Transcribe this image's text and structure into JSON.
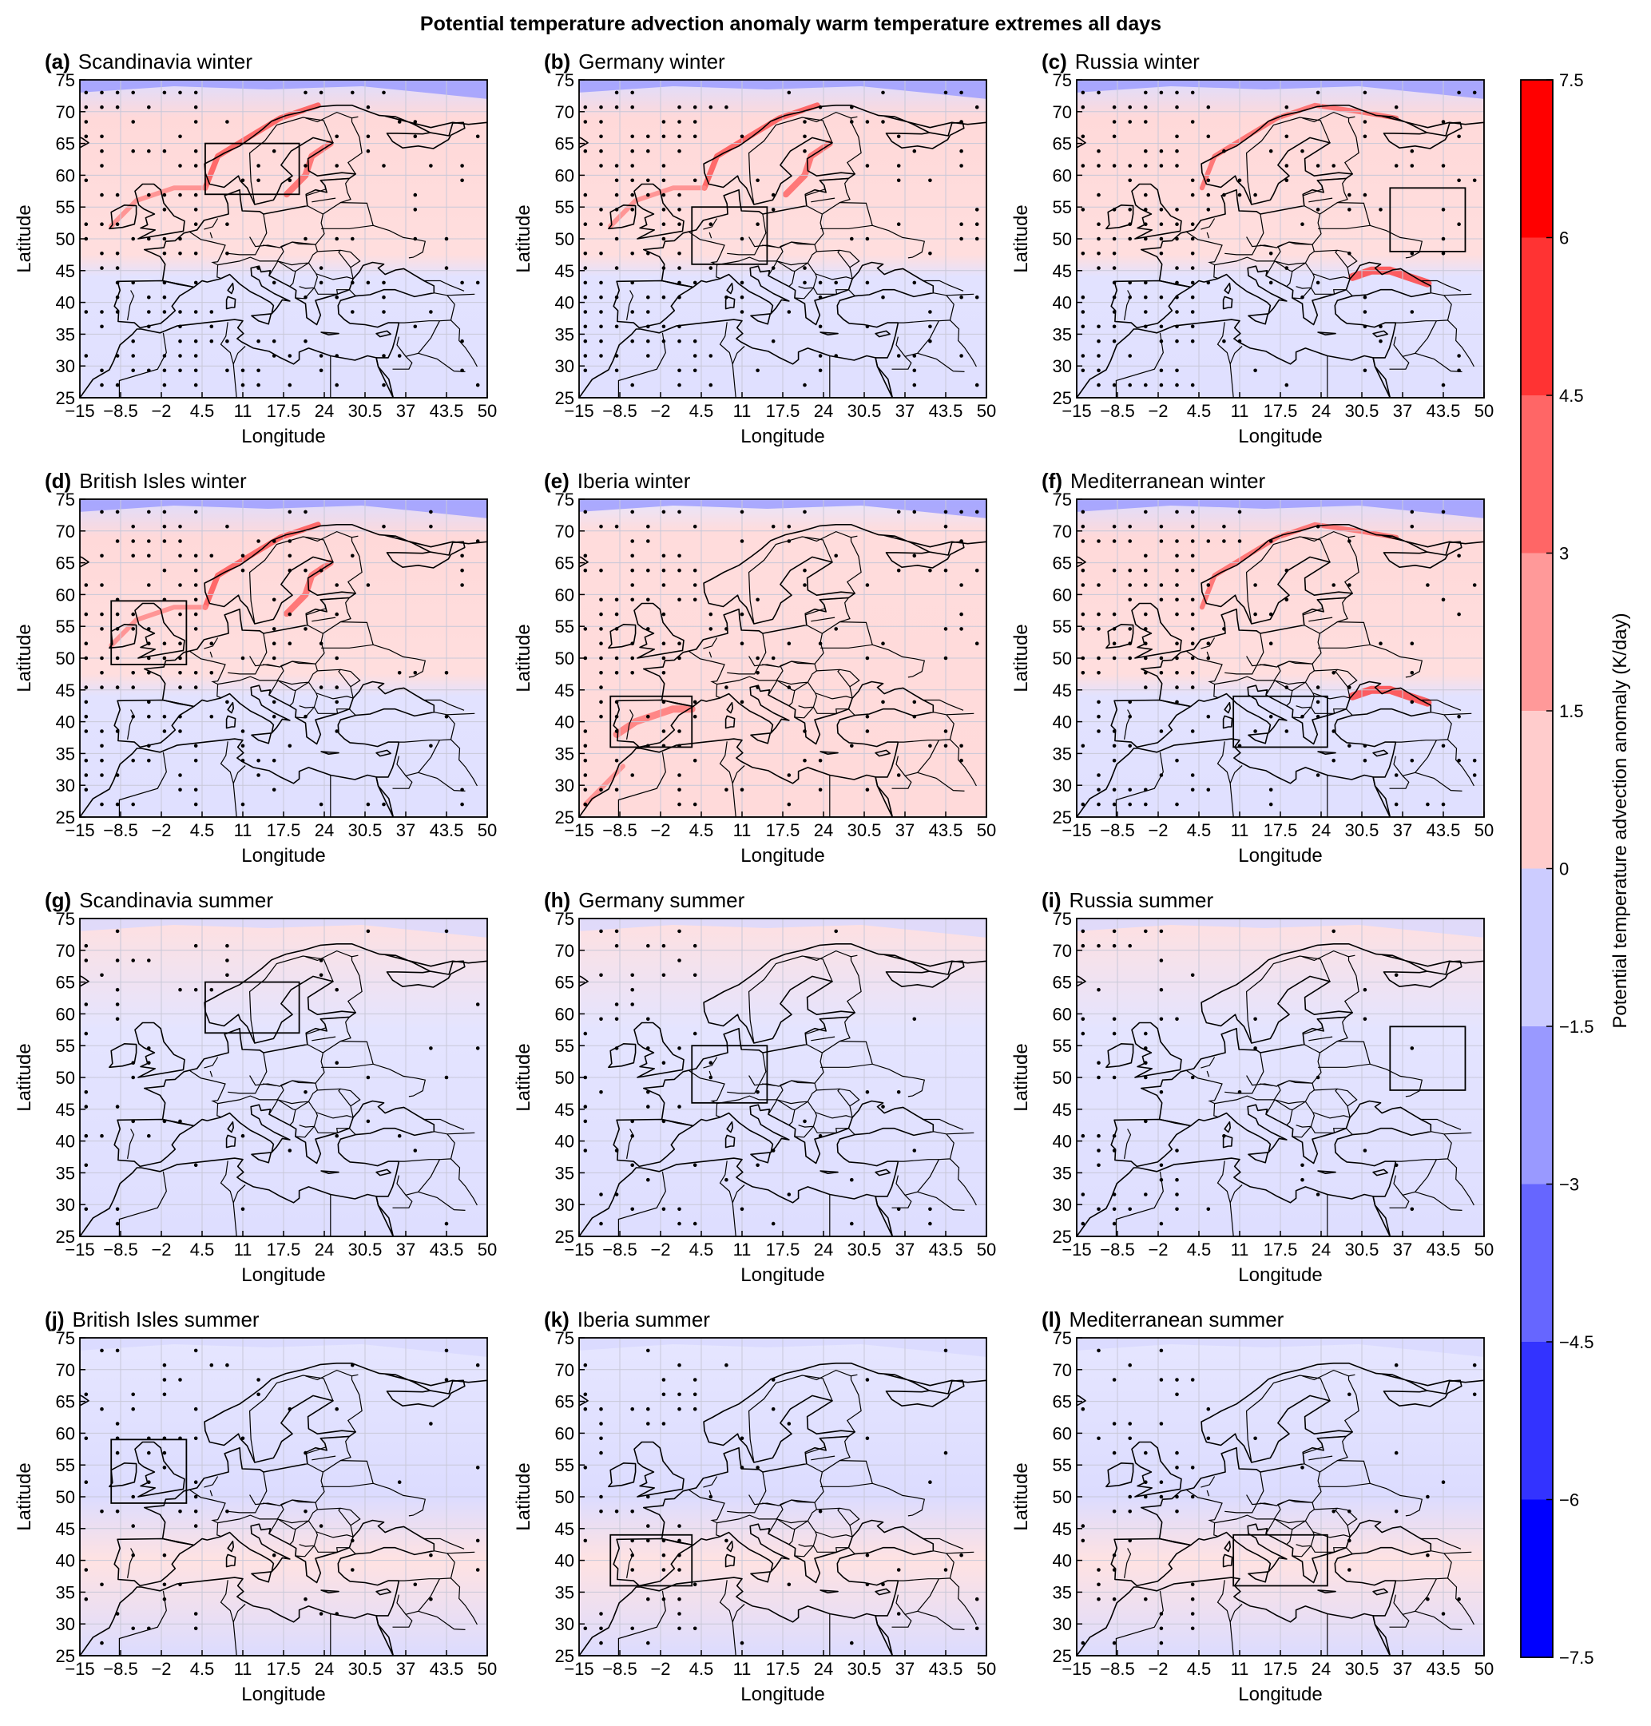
{
  "chart_data": {
    "type": "heatmap",
    "title": "Potential temperature advection anomaly warm temperature extremes all days",
    "xlabel": "Longitude",
    "ylabel": "Latitude",
    "xlim": [
      -15,
      50
    ],
    "ylim": [
      25,
      75
    ],
    "x_ticks": [
      "−15",
      "−8.5",
      "−2",
      "4.5",
      "11",
      "17.5",
      "24",
      "30.5",
      "37",
      "43.5",
      "50"
    ],
    "y_ticks": [
      "25",
      "30",
      "35",
      "40",
      "45",
      "50",
      "55",
      "60",
      "65",
      "70",
      "75"
    ],
    "colorbar": {
      "label": "Potential temperature advection anomaly (K/day)",
      "levels": [
        -7.5,
        -6,
        -4.5,
        -3,
        -1.5,
        0,
        1.5,
        3,
        4.5,
        6,
        7.5
      ],
      "tick_labels": [
        "−7.5",
        "−6",
        "−4.5",
        "−3",
        "−1.5",
        "0",
        "1.5",
        "3",
        "4.5",
        "6",
        "7.5"
      ],
      "colors": [
        "#0000ff",
        "#3333ff",
        "#6666ff",
        "#9999ff",
        "#ccccff",
        "#ffcccc",
        "#ff9999",
        "#ff6666",
        "#ff3333",
        "#ff0000"
      ]
    },
    "panels": [
      {
        "letter": "(a)",
        "name": "Scandinavia winter",
        "box": {
          "lon": [
            5,
            20
          ],
          "lat": [
            57,
            65
          ]
        },
        "field": "warm-coastal-north"
      },
      {
        "letter": "(b)",
        "name": "Germany winter",
        "box": {
          "lon": [
            3,
            15
          ],
          "lat": [
            46,
            55
          ]
        },
        "field": "warm-coastal-north"
      },
      {
        "letter": "(c)",
        "name": "Russia winter",
        "box": {
          "lon": [
            35,
            47
          ],
          "lat": [
            48,
            58
          ]
        },
        "field": "warm-black-sea"
      },
      {
        "letter": "(d)",
        "name": "British Isles winter",
        "box": {
          "lon": [
            -10,
            2
          ],
          "lat": [
            49,
            59
          ]
        },
        "field": "warm-coastal-north"
      },
      {
        "letter": "(e)",
        "name": "Iberia winter",
        "box": {
          "lon": [
            -10,
            3
          ],
          "lat": [
            36,
            44
          ]
        },
        "field": "warm-mediterranean"
      },
      {
        "letter": "(f)",
        "name": "Mediterranean winter",
        "box": {
          "lon": [
            10,
            25
          ],
          "lat": [
            36,
            44
          ]
        },
        "field": "warm-black-sea"
      },
      {
        "letter": "(g)",
        "name": "Scandinavia summer",
        "box": {
          "lon": [
            5,
            20
          ],
          "lat": [
            57,
            65
          ]
        },
        "field": "weak"
      },
      {
        "letter": "(h)",
        "name": "Germany summer",
        "box": {
          "lon": [
            3,
            15
          ],
          "lat": [
            46,
            55
          ]
        },
        "field": "weak"
      },
      {
        "letter": "(i)",
        "name": "Russia summer",
        "box": {
          "lon": [
            35,
            47
          ],
          "lat": [
            48,
            58
          ]
        },
        "field": "weak"
      },
      {
        "letter": "(j)",
        "name": "British Isles summer",
        "box": {
          "lon": [
            -10,
            2
          ],
          "lat": [
            49,
            59
          ]
        },
        "field": "weak-cool"
      },
      {
        "letter": "(k)",
        "name": "Iberia summer",
        "box": {
          "lon": [
            -10,
            3
          ],
          "lat": [
            36,
            44
          ]
        },
        "field": "weak-cool"
      },
      {
        "letter": "(l)",
        "name": "Mediterranean summer",
        "box": {
          "lon": [
            10,
            25
          ],
          "lat": [
            36,
            44
          ]
        },
        "field": "weak-cool"
      }
    ]
  }
}
